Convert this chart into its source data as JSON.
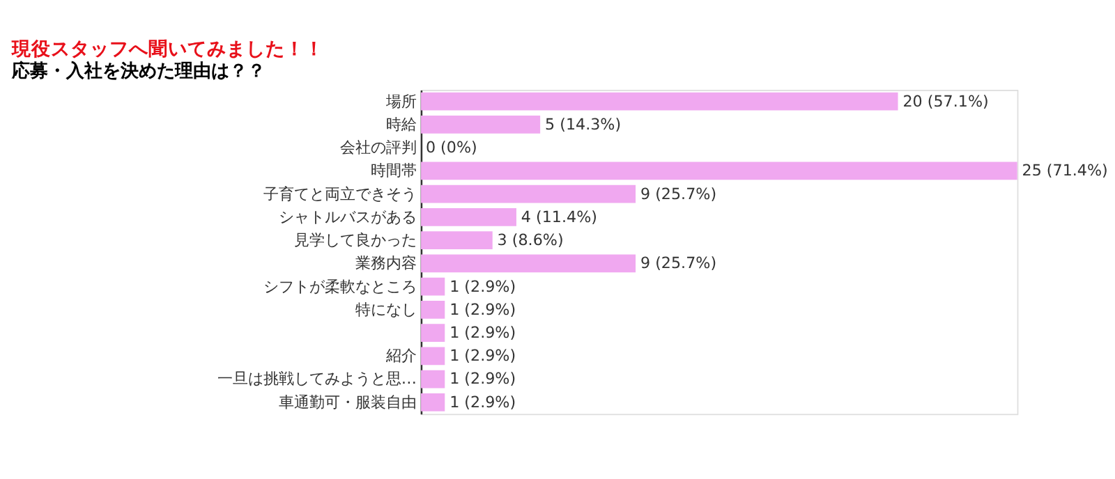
{
  "chart_data": {
    "type": "bar",
    "orientation": "horizontal",
    "title": "現役スタッフへ聞いてみました！！",
    "subtitle": "応募・入社を決めた理由は？？",
    "categories": [
      "場所",
      "時給",
      "会社の評判",
      "時間帯",
      "子育てと両立できそう",
      "シャトルバスがある",
      "見学して良かった",
      "業務内容",
      "シフトが柔軟なところ",
      "特になし",
      null,
      "紹介",
      "一旦は挑戦してみようと思…",
      "車通勤可・服装自由"
    ],
    "values": [
      20,
      5,
      0,
      25,
      9,
      4,
      3,
      9,
      1,
      1,
      1,
      1,
      1,
      1
    ],
    "value_labels": [
      "20 (57.1%)",
      "5 (14.3%)",
      "0 (0%)",
      "25 (71.4%)",
      "9 (25.7%)",
      "4 (11.4%)",
      "3 (8.6%)",
      "9 (25.7%)",
      "1 (2.9%)",
      "1 (2.9%)",
      "1 (2.9%)",
      "1 (2.9%)",
      "1 (2.9%)",
      "1 (2.9%)"
    ],
    "color": "#f0a8f0",
    "grid": false
  }
}
